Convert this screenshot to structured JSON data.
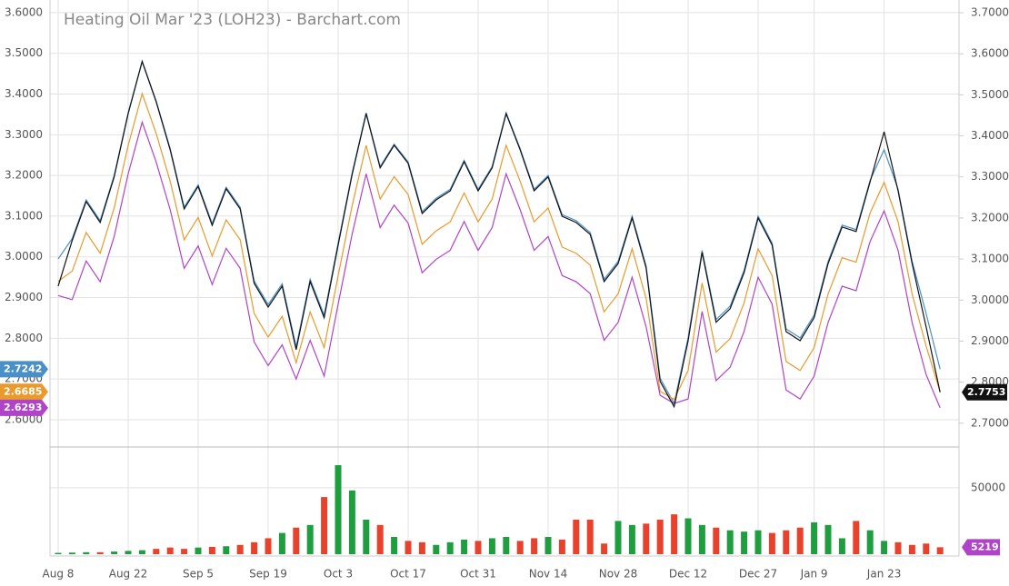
{
  "chart_data": [
    {
      "type": "line",
      "title": "Heating Oil Mar '23 (LOH23) - Barchart.com",
      "ylim": [
        2.533,
        3.631
      ],
      "yticks": [
        {
          "value": 2.6,
          "label": "2.6000"
        },
        {
          "value": 2.7,
          "label": "2.7000"
        },
        {
          "value": 2.8,
          "label": "2.8000"
        },
        {
          "value": 2.9,
          "label": "2.9000"
        },
        {
          "value": 3.0,
          "label": "3.0000"
        },
        {
          "value": 3.1,
          "label": "3.1000"
        },
        {
          "value": 3.2,
          "label": "3.2000"
        },
        {
          "value": 3.3,
          "label": "3.3000"
        },
        {
          "value": 3.4,
          "label": "3.4000"
        },
        {
          "value": 3.5,
          "label": "3.5000"
        },
        {
          "value": 3.6,
          "label": "3.6000"
        }
      ],
      "y2lim": [
        2.642,
        3.731
      ],
      "y2ticks": [
        {
          "value": 2.7,
          "label": "2.7000"
        },
        {
          "value": 2.8,
          "label": "2.8000"
        },
        {
          "value": 2.9,
          "label": "2.9000"
        },
        {
          "value": 3.0,
          "label": "3.0000"
        },
        {
          "value": 3.1,
          "label": "3.1000"
        },
        {
          "value": 3.2,
          "label": "3.2000"
        },
        {
          "value": 3.3,
          "label": "3.3000"
        },
        {
          "value": 3.4,
          "label": "3.4000"
        },
        {
          "value": 3.5,
          "label": "3.5000"
        },
        {
          "value": 3.6,
          "label": "3.6000"
        },
        {
          "value": 3.7,
          "label": "3.7000"
        }
      ],
      "grid": true,
      "series": [
        {
          "color": "#4a90c8",
          "values": [
            2.995,
            3.045,
            3.14,
            3.089,
            3.2,
            3.354,
            3.481,
            3.383,
            3.266,
            3.122,
            3.177,
            3.082,
            3.171,
            3.122,
            2.941,
            2.883,
            2.934,
            2.779,
            2.945,
            2.857,
            3.034,
            3.206,
            3.354,
            3.222,
            3.277,
            3.233,
            3.111,
            3.144,
            3.166,
            3.237,
            3.166,
            3.222,
            3.354,
            3.266,
            3.166,
            3.2,
            3.104,
            3.089,
            3.06,
            2.945,
            2.989,
            3.1,
            2.978,
            2.702,
            2.64,
            2.801,
            3.016,
            2.846,
            2.879,
            2.967,
            3.1,
            3.034,
            2.823,
            2.801,
            2.857,
            2.989,
            3.078,
            3.067,
            3.188,
            3.263,
            3.166,
            2.989,
            2.861,
            2.7242
          ]
        },
        {
          "color": "#e89a2c",
          "values": [
            2.94,
            2.965,
            3.06,
            3.009,
            3.12,
            3.274,
            3.401,
            3.303,
            3.186,
            3.042,
            3.097,
            3.002,
            3.091,
            3.042,
            2.861,
            2.803,
            2.854,
            2.74,
            2.865,
            2.777,
            2.954,
            3.126,
            3.274,
            3.142,
            3.197,
            3.153,
            3.031,
            3.064,
            3.086,
            3.157,
            3.086,
            3.142,
            3.274,
            3.186,
            3.086,
            3.12,
            3.024,
            3.009,
            2.98,
            2.865,
            2.909,
            3.02,
            2.898,
            2.67,
            2.65,
            2.721,
            2.936,
            2.766,
            2.799,
            2.887,
            3.02,
            2.954,
            2.743,
            2.721,
            2.777,
            2.909,
            2.998,
            2.987,
            3.108,
            3.183,
            3.086,
            2.909,
            2.781,
            2.6685
          ]
        },
        {
          "color": "#b044c8",
          "values": [
            2.905,
            2.895,
            2.99,
            2.939,
            3.05,
            3.204,
            3.331,
            3.233,
            3.116,
            2.972,
            3.027,
            2.932,
            3.021,
            2.972,
            2.791,
            2.733,
            2.784,
            2.7,
            2.795,
            2.707,
            2.884,
            3.056,
            3.204,
            3.072,
            3.127,
            3.083,
            2.961,
            2.994,
            3.016,
            3.087,
            3.016,
            3.072,
            3.204,
            3.116,
            3.016,
            3.05,
            2.954,
            2.939,
            2.91,
            2.795,
            2.839,
            2.95,
            2.828,
            2.66,
            2.64,
            2.651,
            2.866,
            2.696,
            2.729,
            2.817,
            2.95,
            2.884,
            2.673,
            2.651,
            2.707,
            2.839,
            2.928,
            2.917,
            3.038,
            3.113,
            3.016,
            2.839,
            2.711,
            2.6293
          ]
        },
        {
          "color": "#111111",
          "axis": "y2",
          "values": [
            3.034,
            3.145,
            3.24,
            3.189,
            3.3,
            3.454,
            3.581,
            3.483,
            3.366,
            3.222,
            3.277,
            3.182,
            3.271,
            3.222,
            3.041,
            2.983,
            3.034,
            2.879,
            3.045,
            2.957,
            3.134,
            3.306,
            3.454,
            3.322,
            3.377,
            3.333,
            3.211,
            3.244,
            3.266,
            3.337,
            3.266,
            3.322,
            3.454,
            3.366,
            3.266,
            3.3,
            3.204,
            3.189,
            3.16,
            3.045,
            3.089,
            3.2,
            3.078,
            2.802,
            2.74,
            2.901,
            3.116,
            2.946,
            2.979,
            3.067,
            3.2,
            3.134,
            2.923,
            2.901,
            2.957,
            3.089,
            3.178,
            3.167,
            3.288,
            3.41,
            3.266,
            3.089,
            2.935,
            2.7753
          ]
        }
      ]
    },
    {
      "type": "bar",
      "categories": [
        "Aug 8",
        null,
        null,
        null,
        null,
        "Aug 22",
        null,
        null,
        null,
        null,
        "Sep 5",
        null,
        null,
        null,
        null,
        "Sep 19",
        null,
        null,
        null,
        null,
        "Oct 3",
        null,
        null,
        null,
        null,
        "Oct 17",
        null,
        null,
        null,
        null,
        "Oct 31",
        null,
        null,
        null,
        null,
        "Nov 14",
        null,
        null,
        null,
        null,
        "Nov 28",
        null,
        null,
        null,
        null,
        "Dec 12",
        null,
        null,
        null,
        null,
        "Dec 27",
        null,
        null,
        null,
        "Jan 9",
        null,
        null,
        null,
        null,
        "Jan 23",
        null,
        null,
        null,
        null
      ],
      "values": [
        1000,
        1200,
        1500,
        1500,
        2000,
        2500,
        3000,
        4000,
        5000,
        4000,
        5000,
        5500,
        6000,
        7000,
        9000,
        12000,
        16000,
        20000,
        22000,
        43000,
        67000,
        48000,
        26000,
        22000,
        13000,
        10000,
        9000,
        7000,
        9000,
        11000,
        10000,
        12000,
        13000,
        10000,
        12000,
        13000,
        11000,
        26000,
        26000,
        8000,
        25000,
        22000,
        23000,
        26000,
        30000,
        27000,
        22000,
        20000,
        18000,
        17000,
        18000,
        16000,
        18000,
        20000,
        24000,
        22000,
        12000,
        25000,
        18000,
        10000,
        9000,
        7000,
        8000,
        5219
      ],
      "ylim": [
        0,
        80000
      ],
      "yticks": [
        50000
      ],
      "up_color": "#1e9e3e",
      "down_color": "#e8412c",
      "last_color": "#b044c8"
    }
  ]
}
